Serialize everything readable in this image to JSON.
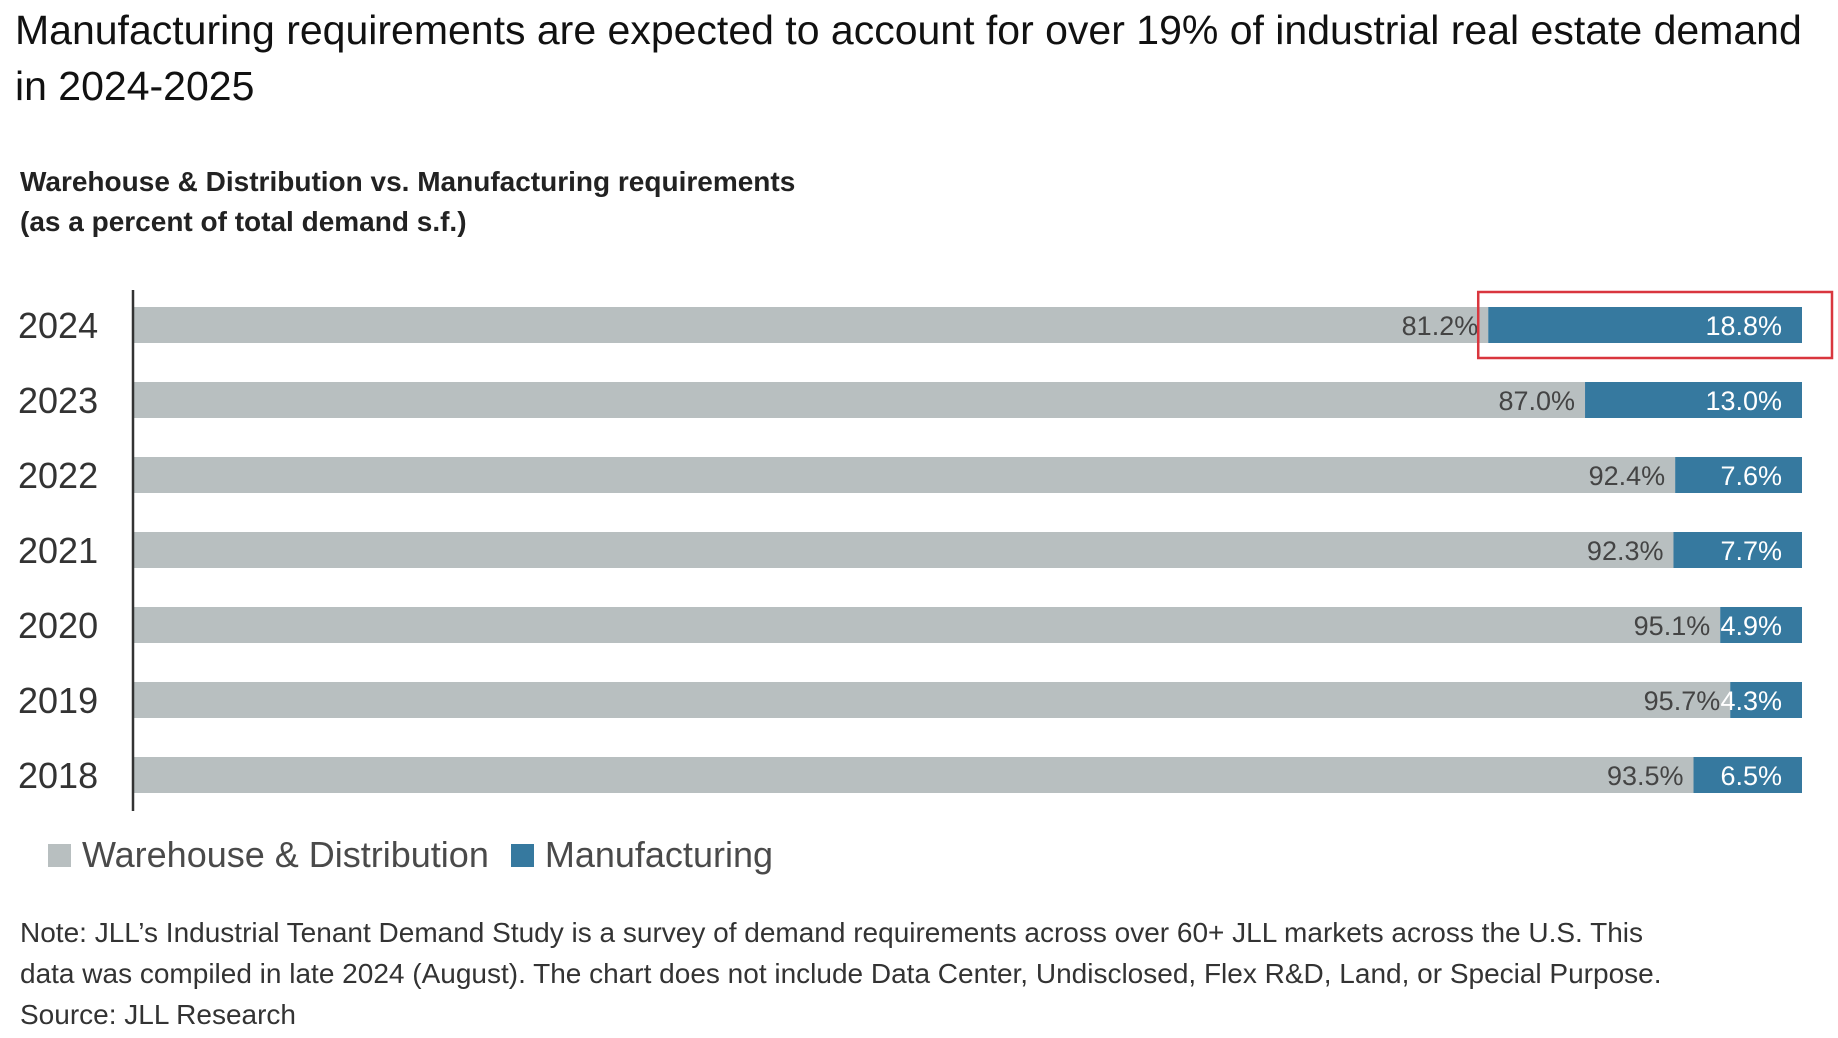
{
  "headline": "Manufacturing requirements are expected to account for over 19% of industrial real estate demand in 2024-2025",
  "subtitle_line1": "Warehouse & Distribution vs. Manufacturing requirements",
  "subtitle_line2": "(as a percent of total demand s.f.)",
  "colors": {
    "warehouse": "#b8bfc0",
    "manufacturing": "#36799f",
    "highlight_box": "#d9363e",
    "axis": "#333333"
  },
  "chart_data": {
    "type": "bar",
    "orientation": "horizontal",
    "stacked": true,
    "percent_scale": true,
    "categories": [
      "2024",
      "2023",
      "2022",
      "2021",
      "2020",
      "2019",
      "2018"
    ],
    "series": [
      {
        "name": "Warehouse & Distribution",
        "values": [
          81.2,
          87.0,
          92.4,
          92.3,
          95.1,
          95.7,
          93.5
        ],
        "labels": [
          "81.2%",
          "87.0%",
          "92.4%",
          "92.3%",
          "95.1%",
          "95.7%",
          "93.5%"
        ]
      },
      {
        "name": "Manufacturing",
        "values": [
          18.8,
          13.0,
          7.6,
          7.7,
          4.9,
          4.3,
          6.5
        ],
        "labels": [
          "18.8%",
          "13.0%",
          "7.6%",
          "7.7%",
          "4.9%",
          "4.3%",
          "6.5%"
        ]
      }
    ],
    "xlim": [
      0,
      100
    ],
    "highlight": {
      "category": "2024",
      "series": "Manufacturing"
    },
    "legend": "bottom-left",
    "grid": false
  },
  "legend": {
    "warehouse_label": "Warehouse & Distribution",
    "manufacturing_label": "Manufacturing"
  },
  "note": {
    "line1": "Note: JLL’s Industrial Tenant Demand Study is a survey of demand requirements across over 60+ JLL markets across the U.S. This",
    "line2": "data was compiled in late 2024 (August). The chart does not include Data Center, Undisclosed,  Flex R&D, Land, or Special Purpose.",
    "line3": "Source: JLL Research"
  }
}
